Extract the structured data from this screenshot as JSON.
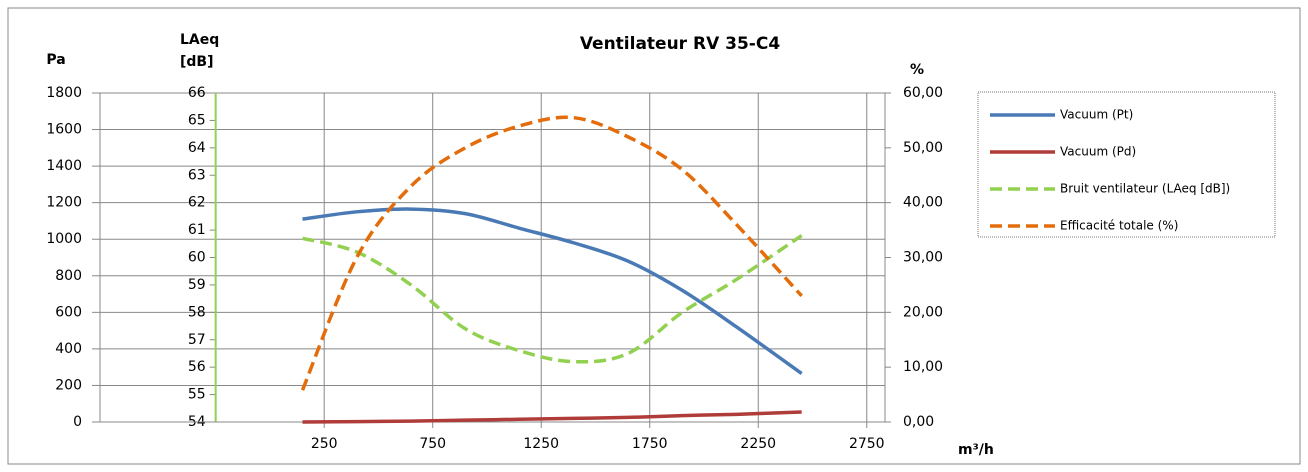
{
  "chart_data": {
    "type": "line",
    "title": "Ventilateur RV 35-C4",
    "y_label": "Pa",
    "y2_label": [
      "LAeq",
      "[dB]"
    ],
    "y3_label": "%",
    "x_label": "m³/h",
    "x": [
      150,
      400,
      650,
      900,
      1150,
      1400,
      1650,
      1900,
      2150,
      2450
    ],
    "xlim": [
      -783,
      2834
    ],
    "xticks": [
      250,
      750,
      1250,
      1750,
      2250,
      2750
    ],
    "ylim": [
      0,
      1800
    ],
    "yticks": [
      0,
      200,
      400,
      600,
      800,
      1000,
      1200,
      1400,
      1600,
      1800
    ],
    "y2lim": [
      54,
      66
    ],
    "y2ticks": [
      54,
      55,
      56,
      57,
      58,
      59,
      60,
      61,
      62,
      63,
      64,
      65,
      66
    ],
    "y2_axis_x": -250,
    "y3lim": [
      0,
      60
    ],
    "y3ticks": [
      {
        "value": 0,
        "label": "0,00"
      },
      {
        "value": 10,
        "label": "10,00"
      },
      {
        "value": 20,
        "label": "20,00"
      },
      {
        "value": 30,
        "label": "30,00"
      },
      {
        "value": 40,
        "label": "40,00"
      },
      {
        "value": 50,
        "label": "50,00"
      },
      {
        "value": 60,
        "label": "60,00"
      }
    ],
    "grid": true,
    "legend": "right",
    "series": [
      {
        "name": "Vacuum (Pt)",
        "color": "#4a7ab5",
        "axis": "y",
        "dashed": false,
        "values": [
          1110,
          1150,
          1165,
          1140,
          1060,
          980,
          880,
          720,
          520,
          265
        ]
      },
      {
        "name": "Vacuum (Pd)",
        "color": "#b03c3a",
        "axis": "y",
        "dashed": false,
        "values": [
          0,
          2,
          5,
          10,
          15,
          20,
          25,
          35,
          42,
          55
        ]
      },
      {
        "name": "Bruit ventilateur (LAeq [dB])",
        "color": "#92d050",
        "axis": "y2",
        "dashed": true,
        "values": [
          60.7,
          60.2,
          59.0,
          57.4,
          56.6,
          56.2,
          56.5,
          58.0,
          59.2,
          60.8
        ]
      },
      {
        "name": "Efficacité totale (%)",
        "color": "#e46c0a",
        "axis": "y3",
        "dashed": true,
        "values": [
          5.8,
          30,
          43,
          50,
          54,
          55.5,
          52,
          46,
          36,
          23
        ]
      }
    ]
  }
}
